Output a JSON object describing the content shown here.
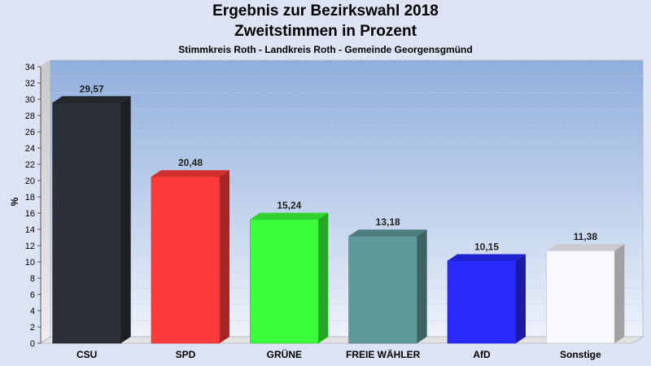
{
  "chart_data": {
    "type": "bar",
    "title": "Ergebnis zur Bezirkswahl 2018",
    "subtitle": "Zweitstimmen in Prozent",
    "caption": "Stimmkreis Roth - Landkreis Roth - Gemeinde Georgensgmünd",
    "ylabel": "%",
    "xlabel": "",
    "ylim": [
      0,
      34
    ],
    "ytick_step": 2,
    "grid": true,
    "categories": [
      "CSU",
      "SPD",
      "GRÜNE",
      "FREIE WÄHLER",
      "AfD",
      "Sonstige"
    ],
    "values": [
      29.57,
      20.48,
      15.24,
      13.18,
      10.15,
      11.38
    ],
    "value_labels": [
      "29,57",
      "20,48",
      "15,24",
      "13,18",
      "10,15",
      "11,38"
    ],
    "colors": [
      "#2b2f36",
      "#ff3a3a",
      "#3aff3a",
      "#5f9999",
      "#2a2aff",
      "#f7f8fc"
    ]
  }
}
